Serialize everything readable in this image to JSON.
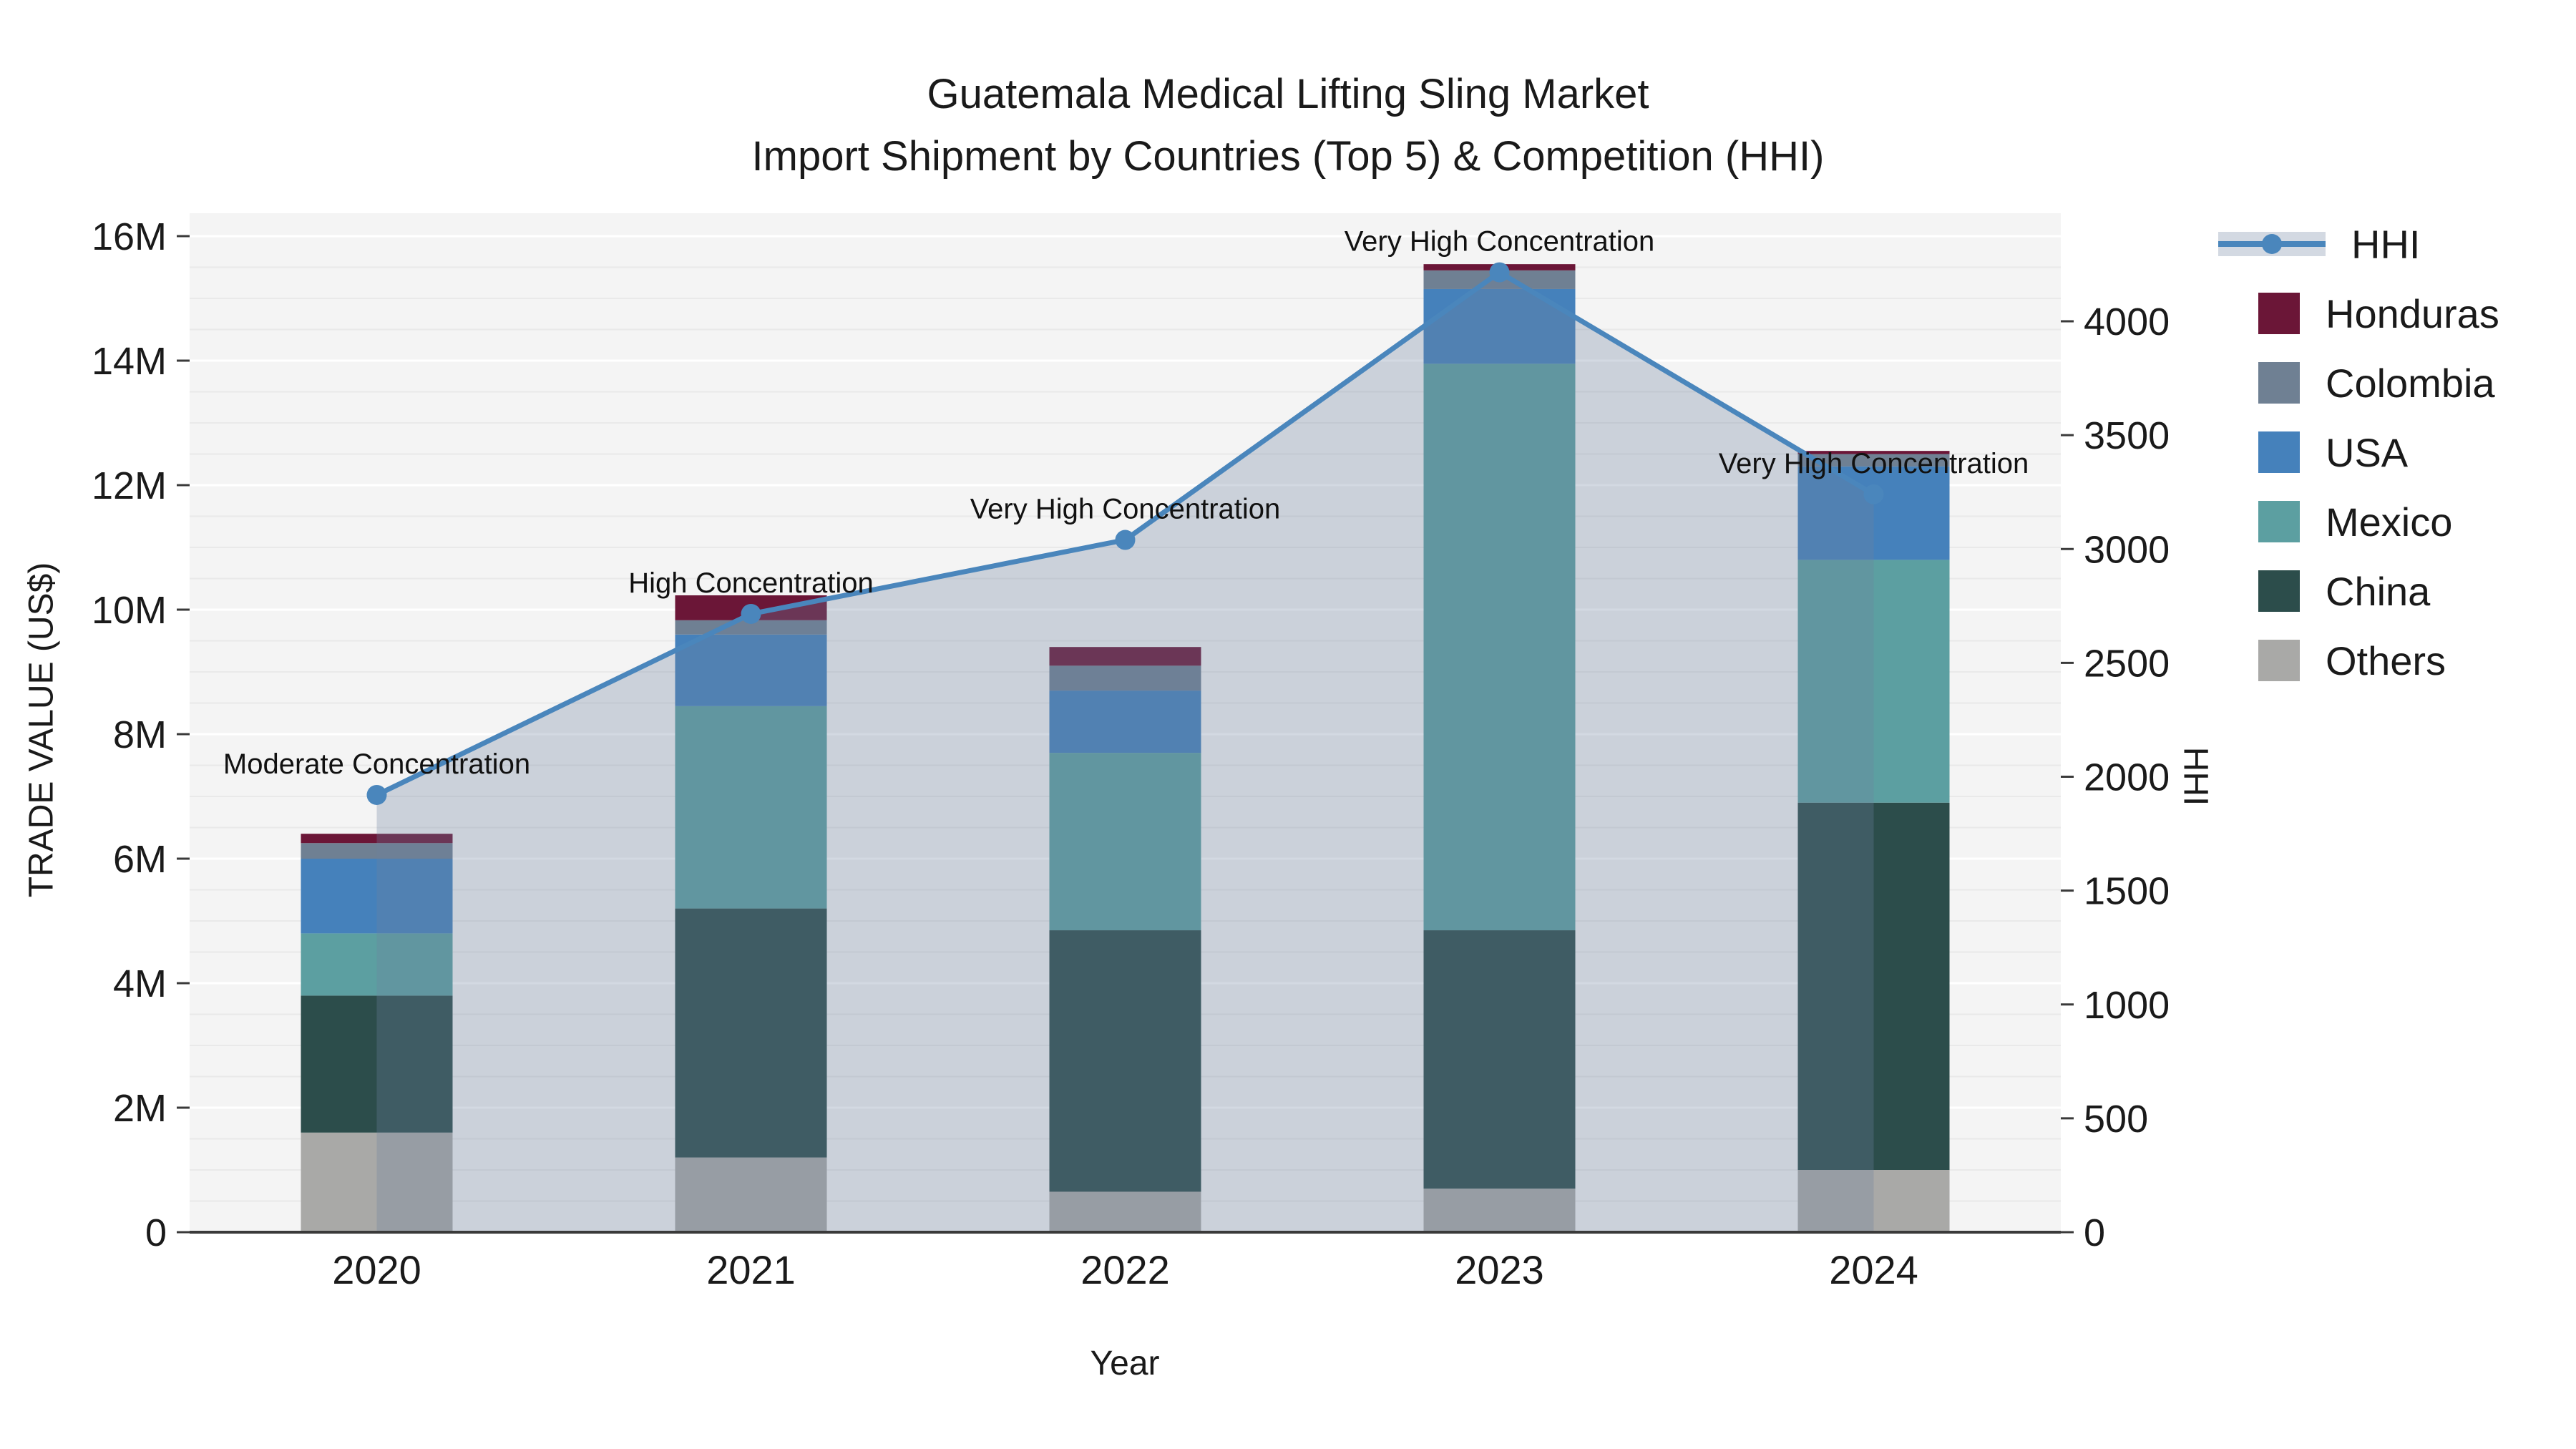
{
  "title": {
    "line1": "Guatemala Medical Lifting Sling Market",
    "line2": "Import Shipment by Countries (Top 5) & Competition (HHI)"
  },
  "axes": {
    "left": {
      "label": "TRADE VALUE (US$)",
      "ticks": [
        "0",
        "2M",
        "4M",
        "6M",
        "8M",
        "10M",
        "12M",
        "14M",
        "16M"
      ],
      "tick_values": [
        0,
        2,
        4,
        6,
        8,
        10,
        12,
        14,
        16
      ]
    },
    "right": {
      "label": "HHI",
      "ticks": [
        "0",
        "500",
        "1000",
        "1500",
        "2000",
        "2500",
        "3000",
        "3500",
        "4000"
      ],
      "tick_values": [
        0,
        500,
        1000,
        1500,
        2000,
        2500,
        3000,
        3500,
        4000
      ]
    },
    "x": {
      "label": "Year",
      "categories": [
        "2020",
        "2021",
        "2022",
        "2023",
        "2024"
      ]
    }
  },
  "legend": {
    "items": [
      {
        "label": "HHI",
        "type": "line",
        "color": "#4A86BC"
      },
      {
        "label": "Honduras",
        "type": "patch",
        "color": "#6B1637"
      },
      {
        "label": "Colombia",
        "type": "patch",
        "color": "#6F8093"
      },
      {
        "label": "USA",
        "type": "patch",
        "color": "#4581BB"
      },
      {
        "label": "Mexico",
        "type": "patch",
        "color": "#5C9FA1"
      },
      {
        "label": "China",
        "type": "patch",
        "color": "#2C4D4B"
      },
      {
        "label": "Others",
        "type": "patch",
        "color": "#A9A9A7"
      }
    ]
  },
  "chart_data": {
    "type": "bar",
    "subtype": "stacked-bar-with-line",
    "categories": [
      "2020",
      "2021",
      "2022",
      "2023",
      "2024"
    ],
    "bar_unit": "million US$",
    "series": [
      {
        "name": "Others",
        "color": "#A9A9A7",
        "values": [
          1.6,
          1.2,
          0.65,
          0.7,
          1.0
        ]
      },
      {
        "name": "China",
        "color": "#2C4D4B",
        "values": [
          2.2,
          4.0,
          4.2,
          4.15,
          5.9
        ]
      },
      {
        "name": "Mexico",
        "color": "#5C9FA1",
        "values": [
          1.0,
          3.25,
          2.85,
          9.1,
          3.9
        ]
      },
      {
        "name": "USA",
        "color": "#4581BB",
        "values": [
          1.2,
          1.15,
          1.0,
          1.2,
          1.5
        ]
      },
      {
        "name": "Colombia",
        "color": "#6F8093",
        "values": [
          0.25,
          0.23,
          0.4,
          0.3,
          0.2
        ]
      },
      {
        "name": "Honduras",
        "color": "#6B1637",
        "values": [
          0.15,
          0.4,
          0.3,
          0.1,
          0.05
        ]
      }
    ],
    "bar_totals": [
      6.4,
      10.23,
      9.4,
      15.55,
      12.55
    ],
    "line_series": {
      "name": "HHI",
      "color": "#4A86BC",
      "area_fill": "rgba(108,130,160,0.30)",
      "values": [
        1920,
        2715,
        3040,
        4215,
        3240
      ]
    },
    "annotations": [
      "Moderate Concentration",
      "High Concentration",
      "Very High Concentration",
      "Very High Concentration",
      "Very High Concentration"
    ],
    "title": "Guatemala Medical Lifting Sling Market Import Shipment by Countries (Top 5) & Competition (HHI)",
    "xlabel": "Year",
    "ylabel_left": "TRADE VALUE (US$)",
    "ylabel_right": "HHI",
    "ylim_left_millions": [
      0,
      16.35
    ],
    "ylim_right": [
      0,
      4470
    ],
    "grid": true,
    "legend_position": "right"
  },
  "style": {
    "plot_bg": "#f4f4f4",
    "major_grid": "#ffffff",
    "minor_grid": "#e9e9e9",
    "axis_line": "#3a3a3a",
    "text": "#1a1a1a"
  }
}
